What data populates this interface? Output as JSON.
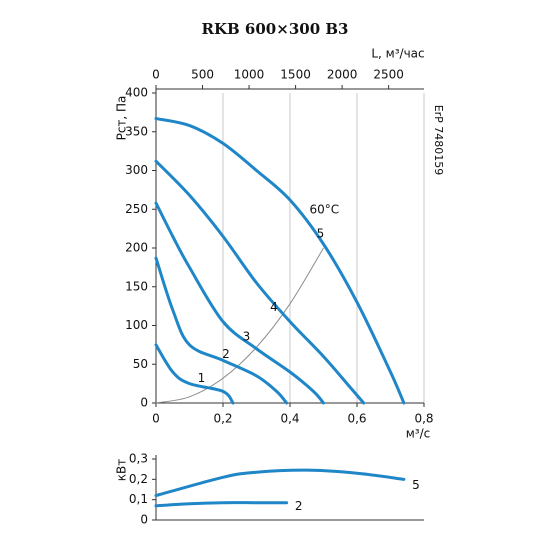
{
  "chart_data": [
    {
      "type": "line",
      "title": "RKB 600×300 B3",
      "ylabel": "Pст, Па",
      "xlabel": "м³/с",
      "x2label": "L, м³/час",
      "side_note": "ErP 7480159",
      "xlim": [
        0,
        0.8
      ],
      "xticks": [
        0,
        {
          "value": 0.2,
          "label": "0,2"
        },
        {
          "value": 0.4,
          "label": "0,4"
        },
        {
          "value": 0.6,
          "label": "0,6"
        },
        {
          "value": 0.8,
          "label": "0,8"
        }
      ],
      "x2lim": [
        0,
        2880
      ],
      "x2ticks": [
        0,
        500,
        1000,
        1500,
        2000,
        2500
      ],
      "ylim": [
        0,
        400
      ],
      "yticks": [
        0,
        50,
        100,
        150,
        200,
        250,
        300,
        350,
        400
      ],
      "grid": true,
      "series": [
        {
          "name": "1",
          "color": "#1f86c8",
          "x": [
            0,
            0.05,
            0.1,
            0.2,
            0.23
          ],
          "values": [
            75,
            40,
            25,
            15,
            0
          ]
        },
        {
          "name": "2",
          "color": "#1f86c8",
          "x": [
            0,
            0.05,
            0.1,
            0.2,
            0.3,
            0.36,
            0.39
          ],
          "values": [
            187,
            120,
            75,
            55,
            35,
            15,
            0
          ]
        },
        {
          "name": "3",
          "color": "#1f86c8",
          "x": [
            0,
            0.05,
            0.1,
            0.2,
            0.3,
            0.4,
            0.47,
            0.5
          ],
          "values": [
            258,
            215,
            175,
            105,
            70,
            40,
            15,
            0
          ]
        },
        {
          "name": "4",
          "color": "#1f86c8",
          "x": [
            0,
            0.1,
            0.2,
            0.3,
            0.4,
            0.5,
            0.58,
            0.62
          ],
          "values": [
            312,
            268,
            215,
            155,
            105,
            60,
            20,
            0
          ]
        },
        {
          "name": "5",
          "color": "#1f86c8",
          "x": [
            0,
            0.1,
            0.2,
            0.3,
            0.4,
            0.5,
            0.6,
            0.7,
            0.74
          ],
          "values": [
            367,
            358,
            335,
            300,
            262,
            205,
            130,
            40,
            0
          ]
        }
      ],
      "system_curve": {
        "color": "#8c8c8c",
        "x": [
          0,
          0.1,
          0.2,
          0.3,
          0.4,
          0.5
        ],
        "values": [
          0,
          8,
          32,
          72,
          128,
          200
        ]
      },
      "annotation": "60°C"
    },
    {
      "type": "line",
      "ylabel": "кВт",
      "xlim": [
        0,
        0.8
      ],
      "ylim": [
        0,
        0.3
      ],
      "yticks": [
        0,
        {
          "value": 0.1,
          "label": "0,1"
        },
        {
          "value": 0.2,
          "label": "0,2"
        },
        {
          "value": 0.3,
          "label": "0,3"
        }
      ],
      "series": [
        {
          "name": "5",
          "color": "#1f86c8",
          "x": [
            0,
            0.2,
            0.3,
            0.45,
            0.6,
            0.74
          ],
          "values": [
            0.12,
            0.21,
            0.235,
            0.245,
            0.23,
            0.2
          ]
        },
        {
          "name": "2",
          "color": "#1f86c8",
          "x": [
            0,
            0.1,
            0.2,
            0.3,
            0.39
          ],
          "values": [
            0.07,
            0.08,
            0.085,
            0.085,
            0.085
          ]
        }
      ]
    }
  ]
}
